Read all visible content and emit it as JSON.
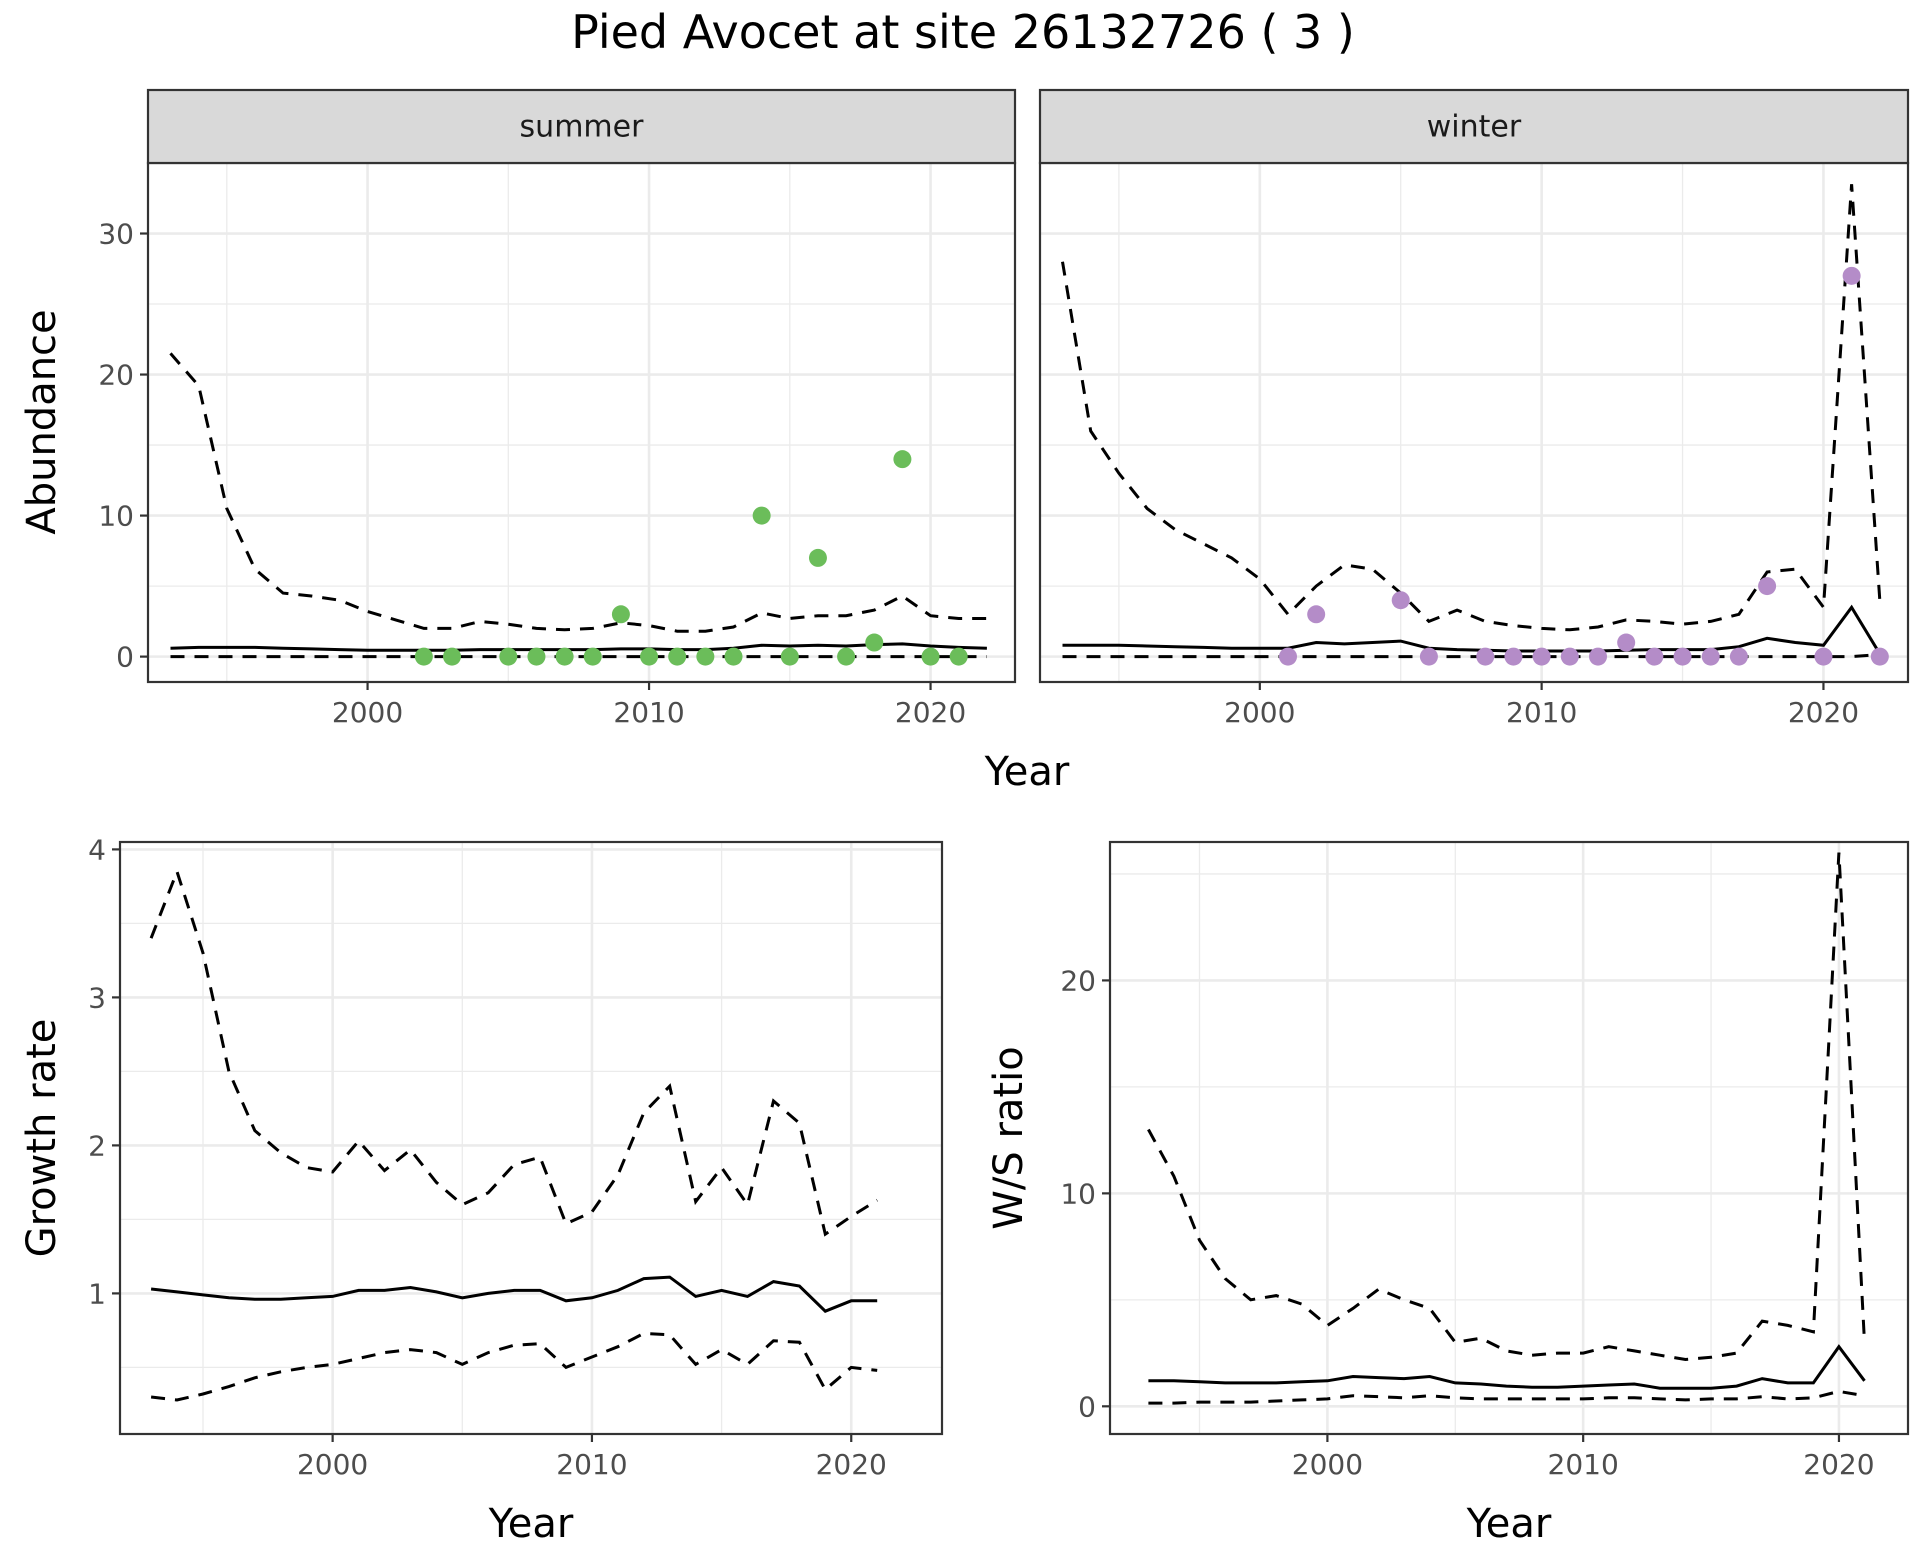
{
  "page": {
    "title": "Pied Avocet at site 26132726 ( 3 )"
  },
  "chart_data": [
    {
      "type": "line",
      "panel": "summer",
      "strip_label": "summer",
      "xlabel": "Year",
      "ylabel": "Abundance",
      "xlim": [
        1992.2,
        2023
      ],
      "ylim": [
        -1.8,
        35
      ],
      "xticks": [
        2000,
        2010,
        2020
      ],
      "yticks": [
        0,
        10,
        20,
        30
      ],
      "grid": true,
      "point_color": "#6bbd5a",
      "series": [
        {
          "style": "solid",
          "x": [
            1993,
            1994,
            1995,
            1996,
            1997,
            1998,
            1999,
            2000,
            2001,
            2002,
            2003,
            2004,
            2005,
            2006,
            2007,
            2008,
            2009,
            2010,
            2011,
            2012,
            2013,
            2014,
            2015,
            2016,
            2017,
            2018,
            2019,
            2020,
            2021,
            2022
          ],
          "values": [
            0.6,
            0.65,
            0.65,
            0.65,
            0.6,
            0.55,
            0.5,
            0.45,
            0.45,
            0.45,
            0.45,
            0.5,
            0.5,
            0.5,
            0.5,
            0.5,
            0.55,
            0.55,
            0.5,
            0.5,
            0.6,
            0.8,
            0.75,
            0.8,
            0.75,
            0.85,
            0.9,
            0.75,
            0.65,
            0.6
          ]
        },
        {
          "style": "dashed",
          "x": [
            1993,
            1994,
            1995,
            1996,
            1997,
            1998,
            1999,
            2000,
            2001,
            2002,
            2003,
            2004,
            2005,
            2006,
            2007,
            2008,
            2009,
            2010,
            2011,
            2012,
            2013,
            2014,
            2015,
            2016,
            2017,
            2018,
            2019,
            2020,
            2021,
            2022
          ],
          "values": [
            21.5,
            19.2,
            10.5,
            6.2,
            4.5,
            4.3,
            4.0,
            3.2,
            2.6,
            2.0,
            2.0,
            2.5,
            2.3,
            2.0,
            1.9,
            2.0,
            2.4,
            2.2,
            1.8,
            1.8,
            2.1,
            3.1,
            2.7,
            2.9,
            2.9,
            3.3,
            4.3,
            2.9,
            2.7,
            2.7
          ]
        },
        {
          "style": "dashed",
          "x": [
            1993,
            2022
          ],
          "values": [
            0,
            0
          ]
        }
      ],
      "points": {
        "x": [
          2002,
          2003,
          2005,
          2006,
          2007,
          2008,
          2009,
          2010,
          2011,
          2012,
          2013,
          2014,
          2015,
          2016,
          2017,
          2018,
          2019,
          2020,
          2021
        ],
        "values": [
          0,
          0,
          0,
          0,
          0,
          0,
          3,
          0,
          0,
          0,
          0,
          10,
          0,
          7,
          0,
          1,
          14,
          0,
          0
        ]
      }
    },
    {
      "type": "line",
      "panel": "winter",
      "strip_label": "winter",
      "xlabel": "Year",
      "ylabel": "Abundance",
      "xlim": [
        1992.2,
        2023
      ],
      "ylim": [
        -1.8,
        35
      ],
      "xticks": [
        2000,
        2010,
        2020
      ],
      "yticks": [
        0,
        10,
        20,
        30
      ],
      "grid": true,
      "point_color": "#b48cc8",
      "series": [
        {
          "style": "solid",
          "x": [
            1993,
            1994,
            1995,
            1996,
            1997,
            1998,
            1999,
            2000,
            2001,
            2002,
            2003,
            2004,
            2005,
            2006,
            2007,
            2008,
            2009,
            2010,
            2011,
            2012,
            2013,
            2014,
            2015,
            2016,
            2017,
            2018,
            2019,
            2020,
            2021,
            2022
          ],
          "values": [
            0.8,
            0.8,
            0.8,
            0.75,
            0.7,
            0.65,
            0.6,
            0.6,
            0.6,
            1.0,
            0.9,
            1.0,
            1.1,
            0.6,
            0.5,
            0.45,
            0.4,
            0.4,
            0.4,
            0.4,
            0.45,
            0.5,
            0.5,
            0.5,
            0.7,
            1.3,
            1.0,
            0.8,
            3.5,
            0.2
          ]
        },
        {
          "style": "dashed",
          "x": [
            1993,
            1994,
            1995,
            1996,
            1997,
            1998,
            1999,
            2000,
            2001,
            2002,
            2003,
            2004,
            2005,
            2006,
            2007,
            2008,
            2009,
            2010,
            2011,
            2012,
            2013,
            2014,
            2015,
            2016,
            2017,
            2018,
            2019,
            2020,
            2021,
            2022
          ],
          "values": [
            28,
            16,
            13,
            10.5,
            9.0,
            8.0,
            7.0,
            5.5,
            3.0,
            5.0,
            6.5,
            6.2,
            4.5,
            2.5,
            3.3,
            2.5,
            2.2,
            2.0,
            1.9,
            2.1,
            2.6,
            2.5,
            2.3,
            2.5,
            3.0,
            6.0,
            6.2,
            3.5,
            33.5,
            4.0
          ]
        },
        {
          "style": "dashed",
          "x": [
            1993,
            2021,
            2022
          ],
          "values": [
            0,
            0,
            0.15
          ]
        }
      ],
      "points": {
        "x": [
          2001,
          2002,
          2005,
          2006,
          2008,
          2009,
          2010,
          2011,
          2012,
          2013,
          2014,
          2015,
          2016,
          2017,
          2018,
          2020,
          2021,
          2022
        ],
        "values": [
          0,
          3,
          4,
          0,
          0,
          0,
          0,
          0,
          0,
          1,
          0,
          0,
          0,
          0,
          5,
          0,
          27,
          0
        ]
      }
    },
    {
      "type": "line",
      "panel": "growth",
      "xlabel": "Year",
      "ylabel": "Growth rate",
      "xlim": [
        1991.8,
        2023.5
      ],
      "ylim": [
        0.05,
        4.05
      ],
      "xticks": [
        2000,
        2010,
        2020
      ],
      "yticks": [
        1,
        2,
        3,
        4
      ],
      "grid": true,
      "series": [
        {
          "style": "solid",
          "x": [
            1993,
            1994,
            1995,
            1996,
            1997,
            1998,
            1999,
            2000,
            2001,
            2002,
            2003,
            2004,
            2005,
            2006,
            2007,
            2008,
            2009,
            2010,
            2011,
            2012,
            2013,
            2014,
            2015,
            2016,
            2017,
            2018,
            2019,
            2020,
            2021
          ],
          "values": [
            1.03,
            1.01,
            0.99,
            0.97,
            0.96,
            0.96,
            0.97,
            0.98,
            1.02,
            1.02,
            1.04,
            1.01,
            0.97,
            1.0,
            1.02,
            1.02,
            0.95,
            0.97,
            1.02,
            1.1,
            1.11,
            0.98,
            1.02,
            0.98,
            1.08,
            1.05,
            0.88,
            0.95,
            0.95
          ]
        },
        {
          "style": "dashed",
          "x": [
            1993,
            1994,
            1995,
            1996,
            1997,
            1998,
            1999,
            2000,
            2001,
            2002,
            2003,
            2004,
            2005,
            2006,
            2007,
            2008,
            2009,
            2010,
            2011,
            2012,
            2013,
            2014,
            2015,
            2016,
            2017,
            2018,
            2019,
            2020,
            2021
          ],
          "values": [
            3.4,
            3.85,
            3.3,
            2.5,
            2.1,
            1.95,
            1.85,
            1.82,
            2.03,
            1.83,
            1.97,
            1.75,
            1.6,
            1.68,
            1.87,
            1.92,
            1.47,
            1.55,
            1.8,
            2.22,
            2.4,
            1.62,
            1.85,
            1.6,
            2.3,
            2.15,
            1.4,
            1.52,
            1.63
          ]
        },
        {
          "style": "dashed",
          "x": [
            1993,
            1994,
            1995,
            1996,
            1997,
            1998,
            1999,
            2000,
            2001,
            2002,
            2003,
            2004,
            2005,
            2006,
            2007,
            2008,
            2009,
            2010,
            2011,
            2012,
            2013,
            2014,
            2015,
            2016,
            2017,
            2018,
            2019,
            2020,
            2021
          ],
          "values": [
            0.3,
            0.28,
            0.32,
            0.37,
            0.43,
            0.47,
            0.5,
            0.52,
            0.56,
            0.6,
            0.62,
            0.6,
            0.52,
            0.6,
            0.65,
            0.66,
            0.5,
            0.57,
            0.64,
            0.73,
            0.72,
            0.52,
            0.62,
            0.52,
            0.68,
            0.67,
            0.35,
            0.5,
            0.48
          ]
        }
      ]
    },
    {
      "type": "line",
      "panel": "ratio",
      "xlabel": "Year",
      "ylabel": "W/S ratio",
      "xlim": [
        1991.5,
        2022.7
      ],
      "ylim": [
        -1.3,
        26.5
      ],
      "xticks": [
        2000,
        2010,
        2020
      ],
      "yticks": [
        0,
        10,
        20
      ],
      "grid": true,
      "series": [
        {
          "style": "solid",
          "x": [
            1993,
            1994,
            1995,
            1996,
            1997,
            1998,
            1999,
            2000,
            2001,
            2002,
            2003,
            2004,
            2005,
            2006,
            2007,
            2008,
            2009,
            2010,
            2011,
            2012,
            2013,
            2014,
            2015,
            2016,
            2017,
            2018,
            2019,
            2020,
            2021
          ],
          "values": [
            1.2,
            1.2,
            1.15,
            1.1,
            1.1,
            1.1,
            1.15,
            1.2,
            1.4,
            1.35,
            1.3,
            1.4,
            1.1,
            1.05,
            0.95,
            0.9,
            0.9,
            0.95,
            1.0,
            1.05,
            0.85,
            0.85,
            0.85,
            0.95,
            1.3,
            1.1,
            1.1,
            2.8,
            1.2
          ]
        },
        {
          "style": "dashed",
          "x": [
            1993,
            1994,
            1995,
            1996,
            1997,
            1998,
            1999,
            2000,
            2001,
            2002,
            2003,
            2004,
            2005,
            2006,
            2007,
            2008,
            2009,
            2010,
            2011,
            2012,
            2013,
            2014,
            2015,
            2016,
            2017,
            2018,
            2019,
            2020,
            2021
          ],
          "values": [
            13,
            10.8,
            7.8,
            6.0,
            5.0,
            5.2,
            4.8,
            3.8,
            4.6,
            5.5,
            5.0,
            4.6,
            3.0,
            3.2,
            2.6,
            2.4,
            2.5,
            2.5,
            2.8,
            2.6,
            2.4,
            2.2,
            2.3,
            2.5,
            4.0,
            3.8,
            3.5,
            26,
            3.0
          ]
        },
        {
          "style": "dashed",
          "x": [
            1993,
            1994,
            1995,
            1996,
            1997,
            1998,
            1999,
            2000,
            2001,
            2002,
            2003,
            2004,
            2005,
            2006,
            2007,
            2008,
            2009,
            2010,
            2011,
            2012,
            2013,
            2014,
            2015,
            2016,
            2017,
            2018,
            2019,
            2020,
            2021
          ],
          "values": [
            0.15,
            0.15,
            0.2,
            0.2,
            0.2,
            0.25,
            0.3,
            0.35,
            0.5,
            0.45,
            0.4,
            0.5,
            0.4,
            0.35,
            0.35,
            0.35,
            0.35,
            0.35,
            0.4,
            0.4,
            0.35,
            0.3,
            0.35,
            0.35,
            0.45,
            0.35,
            0.4,
            0.7,
            0.5
          ]
        }
      ]
    }
  ]
}
